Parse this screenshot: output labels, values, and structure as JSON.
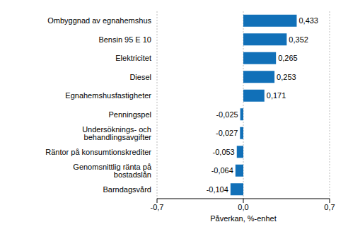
{
  "chart_data": {
    "type": "bar",
    "orientation": "horizontal",
    "categories": [
      "Ombyggnad av egnahemshus",
      "Bensin 95 E 10",
      "Elektricitet",
      "Diesel",
      "Egnahemshusfastigheter",
      "Penningspel",
      "Undersöknings- och behandlingsavgifter",
      "Räntor på konsumtionskrediter",
      "Genomsnittlig ränta på bostadslån",
      "Barndagsvård"
    ],
    "values": [
      0.433,
      0.352,
      0.265,
      0.253,
      0.171,
      -0.025,
      -0.027,
      -0.053,
      -0.064,
      -0.104
    ],
    "value_labels": [
      "0,433",
      "0,352",
      "0,265",
      "0,253",
      "0,171",
      "-0,025",
      "-0,027",
      "-0,053",
      "-0,064",
      "-0,104"
    ],
    "data_labels": true,
    "color": "#1170b8",
    "xlabel": "Påverkan, %-enhet",
    "xlim": [
      -0.7,
      0.7
    ],
    "xticks": [
      {
        "value": -0.7,
        "label": "-0,7"
      },
      {
        "value": 0,
        "label": "0,0"
      },
      {
        "value": 0.7,
        "label": "0,7"
      }
    ],
    "grid": true
  }
}
